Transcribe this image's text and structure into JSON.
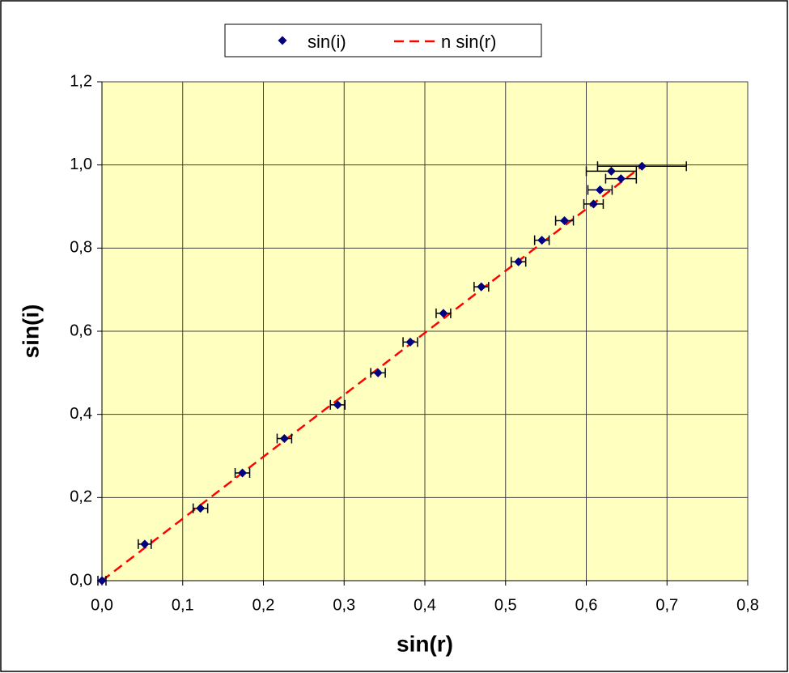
{
  "chart_data": {
    "type": "scatter",
    "x_label": "sin(r)",
    "y_label": "sin(i)",
    "x": [
      0,
      0.053,
      0.122,
      0.174,
      0.226,
      0.292,
      0.342,
      0.382,
      0.423,
      0.47,
      0.516,
      0.545,
      0.573,
      0.609,
      0.617,
      0.643,
      0.631,
      0.669
    ],
    "series": [
      {
        "name": "sin(i)",
        "color": "#000080",
        "values": [
          0,
          0.088,
          0.174,
          0.259,
          0.342,
          0.423,
          0.5,
          0.574,
          0.643,
          0.707,
          0.767,
          0.819,
          0.866,
          0.906,
          0.94,
          0.967,
          0.985,
          0.997
        ],
        "xerr": [
          0.005,
          0.008,
          0.009,
          0.009,
          0.009,
          0.009,
          0.009,
          0.009,
          0.009,
          0.009,
          0.009,
          0.009,
          0.011,
          0.012,
          0.015,
          0.019,
          0.031,
          0.055
        ]
      },
      {
        "name": "n sin(r)",
        "color": "#ff0000",
        "dashed": true,
        "x": [
          0,
          0.669
        ],
        "values": [
          0,
          0.997
        ]
      }
    ],
    "xlim": [
      0,
      0.8
    ],
    "ylim": [
      0,
      1.2
    ],
    "xticks": [
      {
        "value": 0,
        "label": "0,0"
      },
      {
        "value": 0.1,
        "label": "0,1"
      },
      {
        "value": 0.2,
        "label": "0,2"
      },
      {
        "value": 0.3,
        "label": "0,3"
      },
      {
        "value": 0.4,
        "label": "0,4"
      },
      {
        "value": 0.5,
        "label": "0,5"
      },
      {
        "value": 0.6,
        "label": "0,6"
      },
      {
        "value": 0.7,
        "label": "0,7"
      },
      {
        "value": 0.8,
        "label": "0,8"
      }
    ],
    "yticks": [
      {
        "value": 0,
        "label": "0,0"
      },
      {
        "value": 0.2,
        "label": "0,2"
      },
      {
        "value": 0.4,
        "label": "0,4"
      },
      {
        "value": 0.6,
        "label": "0,6"
      },
      {
        "value": 0.8,
        "label": "0,8"
      },
      {
        "value": 1.0,
        "label": "1,0"
      },
      {
        "value": 1.2,
        "label": "1,2"
      }
    ],
    "grid": true,
    "plot_background": "#ffffc0",
    "legend": "top"
  }
}
